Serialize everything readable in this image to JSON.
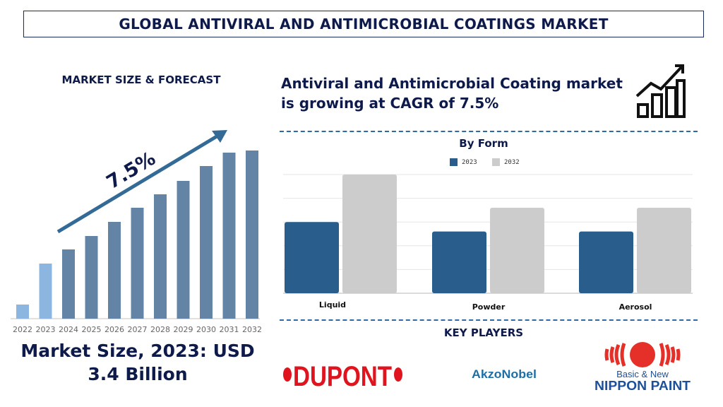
{
  "header": {
    "title": "GLOBAL ANTIVIRAL AND ANTIMICROBIAL COATINGS MARKET"
  },
  "left": {
    "section_title": "MARKET SIZE & FORECAST",
    "cagr_label": "7.5%",
    "market_size": "Market Size, 2023: USD 3.4 Billion"
  },
  "right": {
    "headline": "Antiviral and Antimicrobial Coating market is growing at CAGR of 7.5%",
    "icon": "growth-chart-icon",
    "key_players_title": "KEY PLAYERS"
  },
  "players": [
    {
      "name": "DUPONT",
      "color": "#e0141e"
    },
    {
      "name": "AkzoNobel",
      "color": "#1d6fa5"
    },
    {
      "name": "NIPPON PAINT",
      "tagline": "Basic & New",
      "color": "#1d4f9a",
      "mark_color": "#e5302a"
    }
  ],
  "chart_data": [
    {
      "type": "bar",
      "title": "",
      "categories": [
        "2022",
        "2023",
        "2024",
        "2025",
        "2026",
        "2027",
        "2028",
        "2029",
        "2030",
        "2031",
        "2032"
      ],
      "values": [
        20,
        78,
        98,
        117,
        137,
        157,
        176,
        195,
        216,
        235,
        238
      ],
      "colors": {
        "historical": "#8cb6e0",
        "forecast": "#6384a4"
      },
      "highlighted": [
        "2022",
        "2023"
      ],
      "annotation": "7.5%",
      "y_axis_shown": false,
      "grid": false
    },
    {
      "type": "bar",
      "title": "By Form",
      "categories": [
        "Liquid",
        "Powder",
        "Aerosol"
      ],
      "series": [
        {
          "name": "2023",
          "values": [
            3,
            2.6,
            2.6
          ],
          "color": "#285d8c"
        },
        {
          "name": "2032",
          "values": [
            5,
            3.6,
            3.6
          ],
          "color": "#cccccc"
        }
      ],
      "ylim": [
        0,
        5
      ],
      "y_axis_shown": false,
      "grid": true,
      "legend": "top-center"
    }
  ]
}
